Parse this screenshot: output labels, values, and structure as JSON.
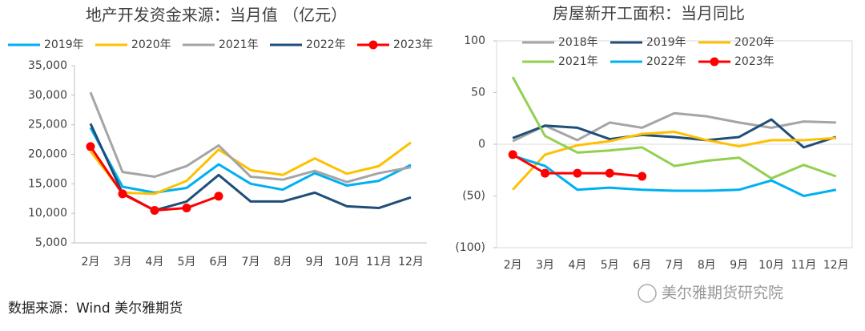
{
  "chart_data": [
    {
      "type": "line",
      "title": "地产开发资金来源：当月值 （亿元）",
      "categories": [
        "2月",
        "3月",
        "4月",
        "5月",
        "6月",
        "7月",
        "8月",
        "9月",
        "10月",
        "11月",
        "12月"
      ],
      "ylim": [
        5000,
        35000
      ],
      "yticks": [
        {
          "value": 5000,
          "label": "5,000"
        },
        {
          "value": 10000,
          "label": "10,000"
        },
        {
          "value": 15000,
          "label": "15,000"
        },
        {
          "value": 20000,
          "label": "20,000"
        },
        {
          "value": 25000,
          "label": "25,000"
        },
        {
          "value": 30000,
          "label": "30,000"
        },
        {
          "value": 35000,
          "label": "35,000"
        }
      ],
      "series": [
        {
          "name": "2019年",
          "color": "#00b0f0",
          "values": [
            24500,
            14500,
            13500,
            14300,
            18300,
            15000,
            14000,
            16800,
            14700,
            15500,
            18200
          ]
        },
        {
          "name": "2020年",
          "color": "#ffc000",
          "values": [
            20500,
            13500,
            13300,
            15500,
            20800,
            17300,
            16500,
            19300,
            16700,
            18000,
            22000
          ]
        },
        {
          "name": "2021年",
          "color": "#a5a5a5",
          "values": [
            30500,
            17000,
            16200,
            18000,
            21500,
            16200,
            15700,
            17200,
            15300,
            16800,
            17800
          ]
        },
        {
          "name": "2022年",
          "color": "#1f4e79",
          "values": [
            25200,
            13400,
            10500,
            12000,
            16500,
            12000,
            12000,
            13500,
            11200,
            10900,
            12700
          ]
        },
        {
          "name": "2023年",
          "color": "#ff0000",
          "marker": "circle",
          "values": [
            21300,
            13300,
            10500,
            10900,
            12900,
            null,
            null,
            null,
            null,
            null,
            null
          ]
        }
      ]
    },
    {
      "type": "line",
      "title": "房屋新开工面积：当月同比",
      "categories": [
        "2月",
        "3月",
        "4月",
        "5月",
        "6月",
        "7月",
        "8月",
        "9月",
        "10月",
        "11月",
        "12月"
      ],
      "ylim": [
        -100,
        100
      ],
      "yticks": [
        {
          "value": -100,
          "label": "(100)"
        },
        {
          "value": -50,
          "label": "(50)"
        },
        0,
        50,
        100
      ],
      "series": [
        {
          "name": "2018年",
          "color": "#a5a5a5",
          "values": [
            3,
            18,
            4,
            21,
            16,
            30,
            27,
            21,
            16,
            22,
            21
          ]
        },
        {
          "name": "2019年",
          "color": "#1f4e79",
          "values": [
            6,
            18,
            16,
            5,
            9,
            7,
            4,
            7,
            24,
            -3,
            7
          ]
        },
        {
          "name": "2020年",
          "color": "#ffc000",
          "values": [
            -44,
            -10,
            -1,
            3,
            10,
            12,
            4,
            -2,
            4,
            4,
            6
          ]
        },
        {
          "name": "2021年",
          "color": "#92d050",
          "values": [
            65,
            8,
            -8,
            -6,
            -3,
            -21,
            -16,
            -13,
            -33,
            -20,
            -31
          ]
        },
        {
          "name": "2022年",
          "color": "#00b0f0",
          "values": [
            -11,
            -21,
            -44,
            -42,
            -44,
            -45,
            -45,
            -44,
            -35,
            -50,
            -44
          ]
        },
        {
          "name": "2023年",
          "color": "#ff0000",
          "marker": "circle",
          "values": [
            -10,
            -28,
            -28,
            -28,
            -31,
            null,
            null,
            null,
            null,
            null,
            null
          ]
        }
      ]
    }
  ],
  "source": "数据来源：Wind 美尔雅期货",
  "watermark": "美尔雅期货研究院"
}
